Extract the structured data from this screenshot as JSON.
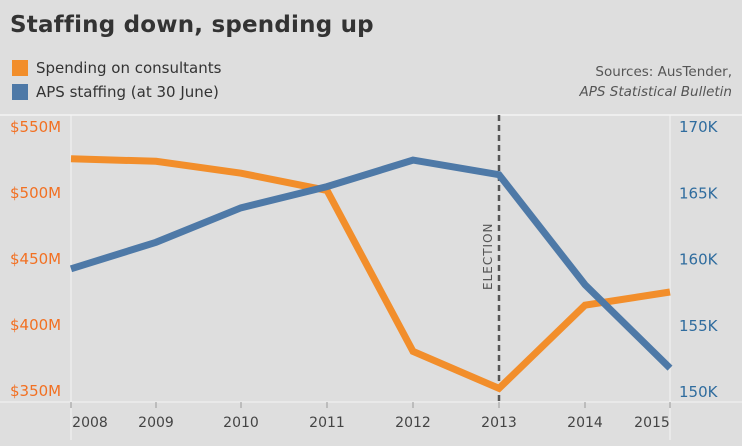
{
  "chart_data": {
    "type": "line",
    "title": "Staffing down, spending up",
    "categories": [
      "2008",
      "2009",
      "2010",
      "2011",
      "2012",
      "2013",
      "2014",
      "2015"
    ],
    "series": [
      {
        "name": "Spending on consultants",
        "axis": "left",
        "unit": "$M",
        "color": "#f28e2b",
        "values": [
          526,
          524,
          515,
          502,
          380,
          352,
          415,
          425
        ]
      },
      {
        "name": "APS staffing (at 30 June)",
        "axis": "right",
        "unit": "K",
        "color": "#4e79a7",
        "values": [
          159.3,
          161.3,
          163.9,
          165.5,
          167.5,
          166.4,
          158.1,
          151.8
        ]
      }
    ],
    "y_left": {
      "ticks": [
        550,
        500,
        450,
        400,
        350
      ],
      "tick_labels": [
        "$550M",
        "$500M",
        "$450M",
        "$400M",
        "$350M"
      ],
      "range": [
        350,
        550
      ],
      "color": "#f27022"
    },
    "y_right": {
      "ticks": [
        170,
        165,
        160,
        155,
        150
      ],
      "tick_labels": [
        "170K",
        "165K",
        "160K",
        "155K",
        "150K"
      ],
      "range": [
        150,
        170
      ],
      "color": "#2f6c9e"
    },
    "annotation": {
      "label": "ELECTION",
      "x": "2013"
    },
    "sources": [
      "Sources: AusTender,",
      "APS Statistical Bulletin"
    ]
  }
}
